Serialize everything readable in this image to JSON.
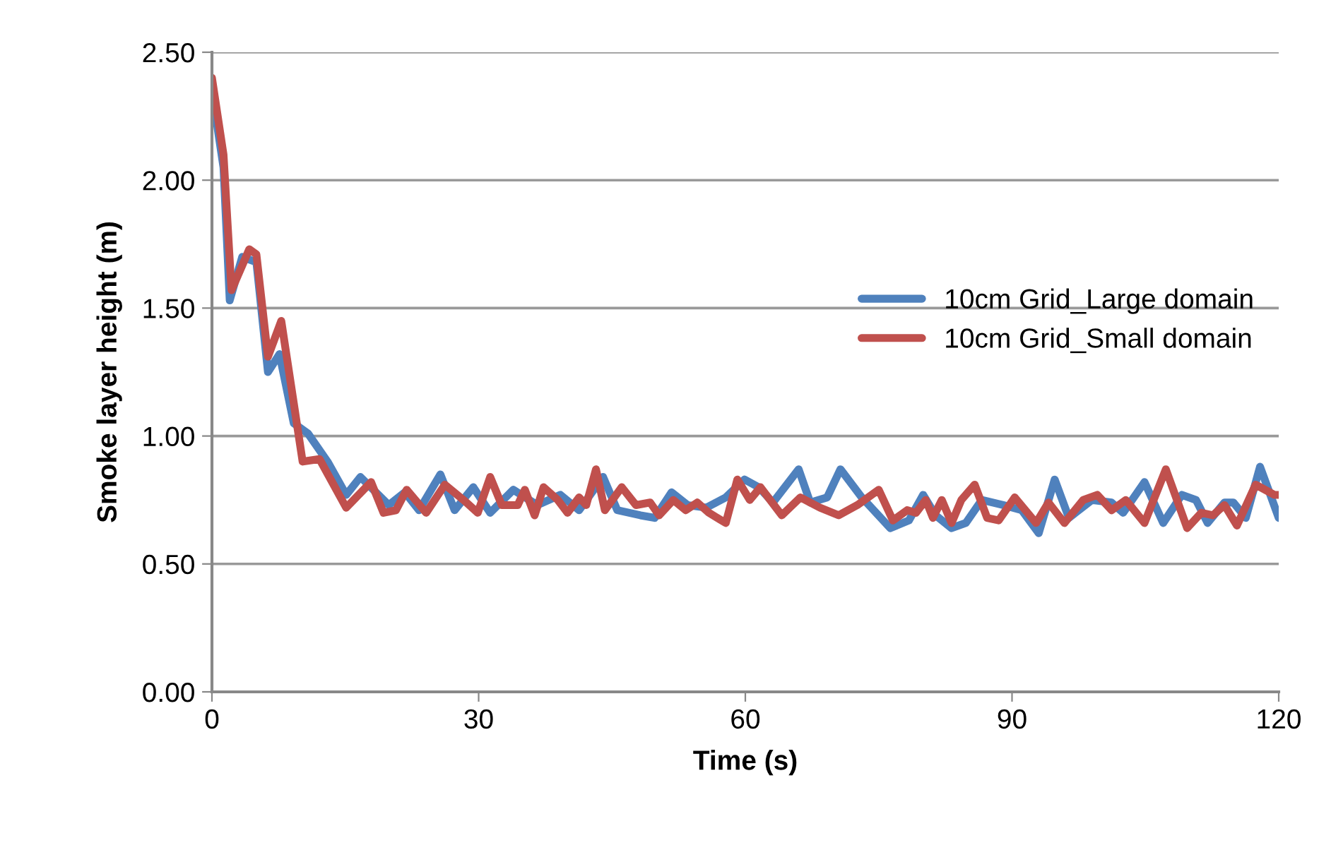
{
  "chart_data": {
    "type": "line",
    "xlabel": "Time (s)",
    "ylabel": "Smoke layer height (m)",
    "xlim": [
      0,
      120
    ],
    "xticks": [
      0,
      30,
      60,
      90,
      120
    ],
    "ylim": [
      0,
      2.5
    ],
    "yticks": [
      {
        "value": 0,
        "label": "0.00"
      },
      {
        "value": 0.5,
        "label": "0.50"
      },
      {
        "value": 1,
        "label": "1.00"
      },
      {
        "value": 1.5,
        "label": "1.50"
      },
      {
        "value": 2,
        "label": "2.00"
      },
      {
        "value": 2.5,
        "label": "2.50"
      }
    ],
    "grid": "y",
    "legend": "right",
    "marker": "none",
    "line_style": "solid",
    "series": [
      {
        "name": "10cm Grid_Large domain",
        "color": "#4f81bd",
        "x": [
          0,
          1.3,
          2.0,
          3.4,
          5.0,
          6.3,
          7.6,
          9.2,
          10.8,
          13.0,
          15.1,
          16.7,
          19.9,
          21.7,
          23.3,
          25.7,
          27.3,
          29.4,
          31.3,
          33.9,
          36.6,
          39.2,
          41.3,
          44.0,
          45.6,
          48.2,
          49.8,
          51.7,
          53.5,
          55.6,
          57.8,
          59.9,
          61.5,
          63.1,
          66.0,
          67.3,
          69.2,
          70.7,
          73.1,
          76.3,
          78.4,
          80.0,
          81.4,
          83.2,
          84.8,
          86.6,
          89.0,
          91.1,
          93.0,
          94.8,
          96.4,
          99.0,
          101.2,
          102.5,
          104.9,
          107.0,
          109.1,
          110.7,
          112.0,
          113.9,
          114.9,
          116.3,
          117.9,
          120
        ],
        "values": [
          2.35,
          2.05,
          1.53,
          1.7,
          1.68,
          1.25,
          1.32,
          1.05,
          1.01,
          0.9,
          0.77,
          0.84,
          0.73,
          0.78,
          0.71,
          0.85,
          0.71,
          0.8,
          0.7,
          0.79,
          0.73,
          0.77,
          0.71,
          0.84,
          0.71,
          0.69,
          0.68,
          0.78,
          0.73,
          0.72,
          0.76,
          0.83,
          0.8,
          0.74,
          0.87,
          0.74,
          0.76,
          0.87,
          0.76,
          0.64,
          0.67,
          0.77,
          0.69,
          0.64,
          0.66,
          0.75,
          0.73,
          0.71,
          0.62,
          0.83,
          0.68,
          0.75,
          0.74,
          0.7,
          0.82,
          0.66,
          0.77,
          0.75,
          0.66,
          0.74,
          0.74,
          0.68,
          0.88,
          0.68
        ]
      },
      {
        "name": "10cm Grid_Small domain",
        "color": "#c0504d",
        "x": [
          0,
          1.3,
          2.2,
          4.2,
          5.0,
          6.3,
          7.8,
          10.2,
          12.1,
          15.1,
          17.9,
          19.3,
          20.7,
          21.9,
          24.1,
          26.2,
          28.3,
          29.9,
          31.3,
          32.6,
          34.4,
          35.2,
          36.3,
          37.3,
          38.9,
          40.0,
          41.3,
          42.1,
          43.2,
          44.2,
          46.1,
          47.7,
          49.3,
          50.3,
          51.9,
          53.3,
          54.6,
          55.9,
          57.8,
          59.1,
          60.5,
          61.7,
          64.1,
          66.2,
          68.4,
          70.5,
          72.6,
          75.0,
          76.6,
          78.2,
          79.2,
          80.3,
          81.1,
          82.1,
          83.2,
          84.3,
          85.8,
          87.2,
          88.5,
          90.3,
          92.7,
          94.1,
          95.9,
          98.0,
          99.6,
          101.2,
          102.8,
          104.9,
          107.3,
          109.7,
          111.3,
          112.6,
          113.9,
          115.3,
          117.4,
          119.5,
          120
        ],
        "values": [
          2.4,
          2.1,
          1.57,
          1.73,
          1.71,
          1.31,
          1.45,
          0.9,
          0.91,
          0.72,
          0.82,
          0.7,
          0.71,
          0.79,
          0.7,
          0.81,
          0.75,
          0.7,
          0.84,
          0.73,
          0.73,
          0.79,
          0.69,
          0.8,
          0.75,
          0.7,
          0.76,
          0.73,
          0.87,
          0.71,
          0.8,
          0.73,
          0.74,
          0.69,
          0.75,
          0.71,
          0.74,
          0.7,
          0.66,
          0.83,
          0.75,
          0.8,
          0.69,
          0.76,
          0.72,
          0.69,
          0.73,
          0.79,
          0.67,
          0.71,
          0.7,
          0.75,
          0.68,
          0.75,
          0.66,
          0.75,
          0.81,
          0.68,
          0.67,
          0.76,
          0.66,
          0.74,
          0.66,
          0.75,
          0.77,
          0.71,
          0.75,
          0.66,
          0.87,
          0.64,
          0.7,
          0.69,
          0.73,
          0.65,
          0.81,
          0.77,
          0.77
        ]
      }
    ]
  }
}
